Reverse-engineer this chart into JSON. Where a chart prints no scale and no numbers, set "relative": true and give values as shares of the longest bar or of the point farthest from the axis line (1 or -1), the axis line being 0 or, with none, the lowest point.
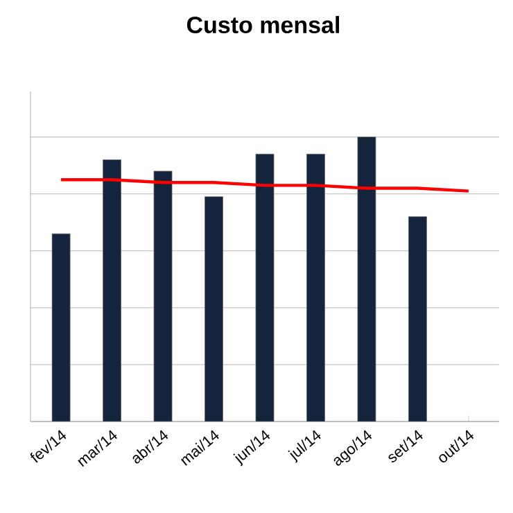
{
  "chart_data": {
    "type": "bar",
    "title": "Custo mensal",
    "relative": true,
    "grid": "y",
    "categories": [
      "fev/14",
      "mar/14",
      "abr/14",
      "mai/14",
      "jun/14",
      "jul/14",
      "ago/14",
      "set/14",
      "out/14"
    ],
    "series": [
      {
        "color": "#14243c",
        "values": [
          0.66,
          0.92,
          0.88,
          0.79,
          0.94,
          0.94,
          1,
          0.72,
          null
        ]
      },
      {
        "type": "line",
        "color": "#ff0000",
        "values": [
          0.85,
          0.85,
          0.84,
          0.84,
          0.83,
          0.83,
          0.82,
          0.82,
          0.81
        ]
      }
    ]
  }
}
